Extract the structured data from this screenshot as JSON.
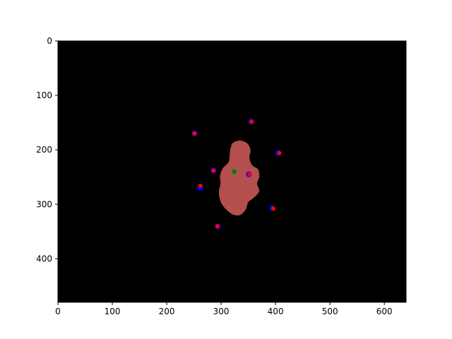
{
  "chart_data": {
    "type": "scatter",
    "title": "",
    "xlabel": "",
    "ylabel": "",
    "xlim": [
      0,
      640
    ],
    "ylim": [
      480,
      0
    ],
    "y_inverted": true,
    "grid": false,
    "legend": "none",
    "x_ticks": [
      0,
      100,
      200,
      300,
      400,
      500,
      600
    ],
    "y_ticks": [
      0,
      100,
      200,
      300,
      400
    ],
    "x_tick_labels": [
      "0",
      "100",
      "200",
      "300",
      "400",
      "500",
      "600"
    ],
    "y_tick_labels": [
      "0",
      "100",
      "200",
      "300",
      "400"
    ],
    "background_image": {
      "description_free": true,
      "background_color": "#000000",
      "blob_color": "#b3504d",
      "blob_outline": [
        [
          322,
          187
        ],
        [
          335,
          183
        ],
        [
          348,
          188
        ],
        [
          354,
          200
        ],
        [
          352,
          214
        ],
        [
          357,
          228
        ],
        [
          368,
          236
        ],
        [
          370,
          250
        ],
        [
          366,
          262
        ],
        [
          370,
          276
        ],
        [
          360,
          288
        ],
        [
          350,
          296
        ],
        [
          345,
          310
        ],
        [
          334,
          320
        ],
        [
          320,
          318
        ],
        [
          306,
          306
        ],
        [
          298,
          292
        ],
        [
          296,
          276
        ],
        [
          299,
          262
        ],
        [
          298,
          248
        ],
        [
          303,
          234
        ],
        [
          314,
          222
        ],
        [
          316,
          206
        ],
        [
          318,
          195
        ]
      ]
    },
    "series": [
      {
        "marker_color": "#0000ff",
        "marker_size": 8,
        "points": [
          [
            251,
            170
          ],
          [
            355,
            148
          ],
          [
            405,
            206
          ],
          [
            286,
            238
          ],
          [
            351,
            245
          ],
          [
            262,
            270
          ],
          [
            394,
            307
          ],
          [
            294,
            341
          ]
        ]
      },
      {
        "marker_color": "#ff0000",
        "marker_size": 6,
        "points": [
          [
            251,
            170
          ],
          [
            356,
            148
          ],
          [
            407,
            206
          ],
          [
            286,
            238
          ],
          [
            352,
            245
          ],
          [
            262,
            266
          ],
          [
            396,
            308
          ],
          [
            293,
            340
          ]
        ]
      },
      {
        "marker_color": "#008000",
        "marker_size": 7,
        "points": [
          [
            324,
            240
          ]
        ]
      }
    ]
  }
}
